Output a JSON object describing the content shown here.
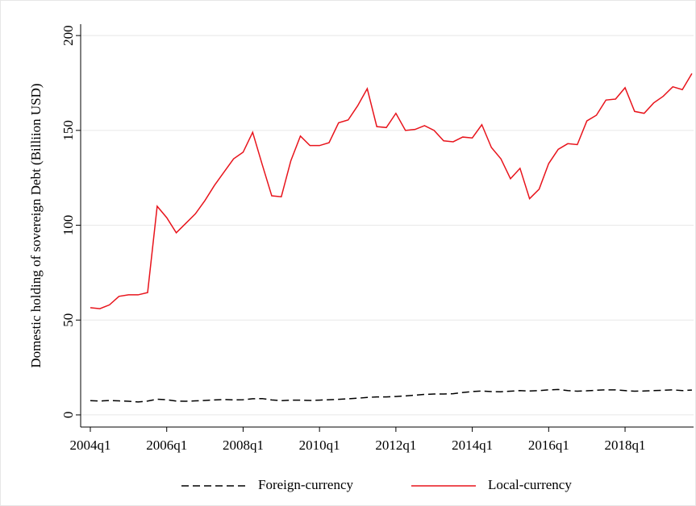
{
  "chart_data": {
    "type": "line",
    "ylabel": "Domestic holding of sovereign Debt (Billiion USD)",
    "categories": [
      "2004q1",
      null,
      null,
      null,
      null,
      null,
      null,
      null,
      "2006q1",
      null,
      null,
      null,
      null,
      null,
      null,
      null,
      "2008q1",
      null,
      null,
      null,
      null,
      null,
      null,
      null,
      "2010q1",
      null,
      null,
      null,
      null,
      null,
      null,
      null,
      "2012q1",
      null,
      null,
      null,
      null,
      null,
      null,
      null,
      "2014q1",
      null,
      null,
      null,
      null,
      null,
      null,
      null,
      "2016q1",
      null,
      null,
      null,
      null,
      null,
      null,
      null,
      "2018q1",
      null,
      null,
      null,
      null,
      null,
      null,
      null
    ],
    "series": [
      {
        "name": "Foreign-currency",
        "color": "#000000",
        "dash": true,
        "values": [
          7.5,
          7.3,
          7.6,
          7.4,
          7.2,
          6.8,
          7.3,
          8.3,
          8.0,
          7.3,
          7.2,
          7.4,
          7.6,
          7.9,
          8.1,
          7.9,
          8.0,
          8.5,
          8.6,
          7.9,
          7.5,
          7.8,
          7.8,
          7.6,
          7.8,
          8.0,
          8.2,
          8.5,
          8.8,
          9.2,
          9.5,
          9.5,
          9.7,
          10.0,
          10.4,
          10.8,
          11.0,
          11.0,
          11.2,
          11.8,
          12.3,
          12.6,
          12.3,
          12.2,
          12.5,
          12.8,
          12.6,
          12.8,
          13.2,
          13.4,
          12.8,
          12.5,
          12.7,
          13.0,
          13.2,
          13.2,
          12.8,
          12.5,
          12.6,
          12.8,
          13.0,
          13.2,
          12.8,
          13.1
        ]
      },
      {
        "name": "Local-currency",
        "color": "#e8141c",
        "dash": false,
        "values": [
          56.5,
          56,
          58,
          62.5,
          63.3,
          63.3,
          64.5,
          110,
          104,
          96,
          101,
          106,
          113,
          121,
          128,
          135,
          138.5,
          149,
          132,
          115.5,
          115,
          134,
          147,
          142,
          142,
          143.5,
          154,
          155.5,
          163,
          172,
          152,
          151.5,
          159,
          150,
          150.5,
          152.5,
          150,
          144.5,
          144,
          146.5,
          146,
          153,
          141,
          135,
          124.5,
          130,
          114,
          119,
          132.5,
          140,
          143,
          142.5,
          155,
          158,
          166,
          166.5,
          172.5,
          160,
          159,
          164.5,
          168,
          173,
          171.5,
          180
        ]
      }
    ],
    "ylim": [
      -6.4,
      206
    ],
    "yticks": [
      0,
      50,
      100,
      150,
      200
    ],
    "grid": true,
    "legend": "bottom"
  }
}
